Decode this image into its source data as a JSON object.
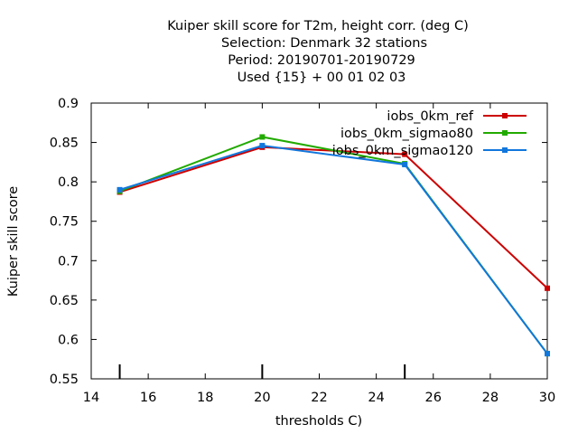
{
  "chart_data": {
    "type": "line",
    "title_lines": [
      "Kuiper skill score  for T2m, height corr. (deg C)",
      "Selection: Denmark     32 stations",
      "Period: 20190701-20190729",
      "Used {15} + 00 01 02 03"
    ],
    "xlabel": "thresholds C)",
    "ylabel": "Kuiper skill score",
    "xlim": [
      14,
      30
    ],
    "ylim": [
      0.55,
      0.9
    ],
    "xticks": [
      "14",
      "16",
      "18",
      "20",
      "22",
      "24",
      "26",
      "28",
      "30"
    ],
    "yticks": [
      "0.55",
      "0.6",
      "0.65",
      "0.7",
      "0.75",
      "0.8",
      "0.85",
      "0.9"
    ],
    "legend_position": "top-right",
    "grid": false,
    "x": [
      15,
      20,
      25,
      30
    ],
    "series": [
      {
        "name": "iobs_0km_ref",
        "color": "#cc0000",
        "values": [
          0.787,
          0.844,
          0.835,
          0.665
        ]
      },
      {
        "name": "iobs_0km_sigmao80",
        "color": "#22aa00",
        "values": [
          0.788,
          0.857,
          0.823,
          0.582
        ]
      },
      {
        "name": "iobs_0km_sigmao120",
        "color": "#1177dd",
        "values": [
          0.79,
          0.846,
          0.822,
          0.582
        ]
      }
    ]
  }
}
